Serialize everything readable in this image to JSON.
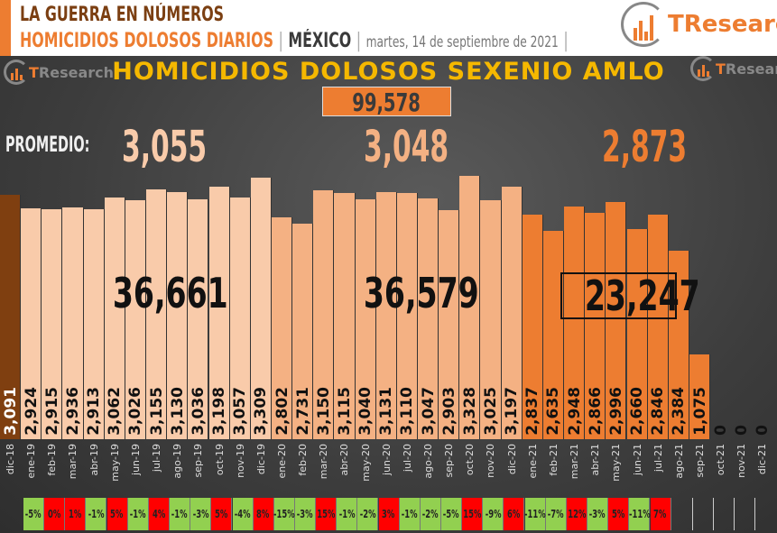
{
  "header": {
    "line1": "LA GUERRA EN NÚMEROS",
    "line2": "HOMICIDIOS DOLOSOS DIARIOS",
    "separator": "|",
    "country": "MÉXICO",
    "date": "martes, 14 de septiembre de 2021",
    "brand": "TResearch",
    "brand_t": "T",
    "brand_rest": "Research"
  },
  "chart_title": "HOMICIDIOS DOLOSOS SEXENIO AMLO",
  "total": "99,578",
  "promedio": {
    "label": "PROMEDIO:",
    "y2019": "3,055",
    "y2020": "3,048",
    "y2021": "2,873"
  },
  "sums": {
    "y2019": "36,661",
    "y2020": "36,579",
    "y2021": "23,247"
  },
  "colors": {
    "dic18": "#7f3f10",
    "y2019": "#f9cbaa",
    "y2020": "#f4b183",
    "y2021": "#ed7d31",
    "up": "#ff0000",
    "down": "#92d050",
    "title": "#f5b800"
  },
  "chart_data": {
    "type": "bar",
    "title": "HOMICIDIOS DOLOSOS SEXENIO AMLO",
    "categories": [
      "dic-18",
      "ene-19",
      "feb-19",
      "mar-19",
      "abr-19",
      "may-19",
      "jun-19",
      "jul-19",
      "ago-19",
      "sep-19",
      "oct-19",
      "nov-19",
      "dic-19",
      "ene-20",
      "feb-20",
      "mar-20",
      "abr-20",
      "may-20",
      "jun-20",
      "jul-20",
      "ago-20",
      "sep-20",
      "oct-20",
      "nov-20",
      "dic-20",
      "ene-21",
      "feb-21",
      "mar-21",
      "abr-21",
      "may-21",
      "jun-21",
      "jul-21",
      "ago-21",
      "sep-21",
      "oct-21",
      "nov-21",
      "dic-21"
    ],
    "values": [
      3091,
      2924,
      2915,
      2936,
      2913,
      3062,
      3026,
      3155,
      3130,
      3036,
      3198,
      3057,
      3309,
      2802,
      2731,
      3150,
      3115,
      3040,
      3131,
      3110,
      3047,
      2903,
      3328,
      3025,
      3197,
      2837,
      2635,
      2948,
      2866,
      2996,
      2660,
      2846,
      2384,
      1075,
      0,
      0,
      0
    ],
    "value_labels": [
      "3,091",
      "2,924",
      "2,915",
      "2,936",
      "2,913",
      "3,062",
      "3,026",
      "3,155",
      "3,130",
      "3,036",
      "3,198",
      "3,057",
      "3,309",
      "2,802",
      "2,731",
      "3,150",
      "3,115",
      "3,040",
      "3,131",
      "3,110",
      "3,047",
      "2,903",
      "3,328",
      "3,025",
      "3,197",
      "2,837",
      "2,635",
      "2,948",
      "2,866",
      "2,996",
      "2,660",
      "2,846",
      "2,384",
      "1,075",
      "0",
      "0",
      "0"
    ],
    "monthly_change": [
      "-5%",
      "0%",
      "1%",
      "-1%",
      "5%",
      "-1%",
      "4%",
      "-1%",
      "-3%",
      "5%",
      "-4%",
      "8%",
      "-15%",
      "-3%",
      "15%",
      "-1%",
      "-2%",
      "3%",
      "-1%",
      "-2%",
      "-5%",
      "15%",
      "-9%",
      "6%",
      "-11%",
      "-7%",
      "12%",
      "-3%",
      "5%",
      "-11%",
      "7%"
    ],
    "grid": false,
    "legend": "none"
  }
}
